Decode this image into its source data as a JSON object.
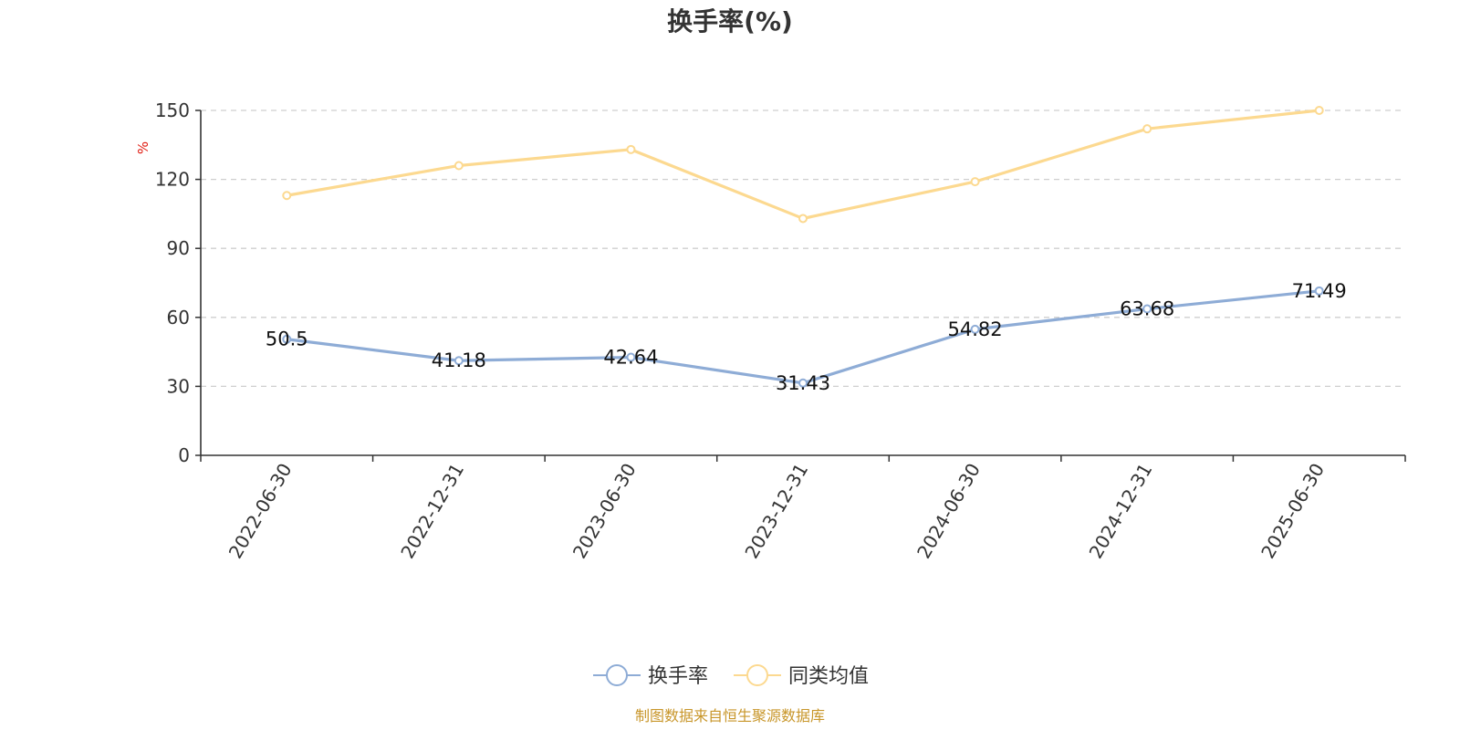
{
  "chart_data": {
    "type": "line",
    "title": "换手率(%)",
    "ylabel": "%",
    "xlabel": "",
    "categories": [
      "2022-06-30",
      "2022-12-31",
      "2023-06-30",
      "2023-12-31",
      "2024-06-30",
      "2024-12-31",
      "2025-06-30"
    ],
    "ylim": [
      0,
      150
    ],
    "yticks": [
      0,
      30,
      60,
      90,
      120,
      150
    ],
    "grid": true,
    "legend_position": "bottom",
    "series": [
      {
        "name": "换手率",
        "values": [
          50.5,
          41.18,
          42.64,
          31.43,
          54.82,
          63.68,
          71.49
        ],
        "data_labels": [
          "50.5",
          "41.18",
          "42.64",
          "31.43",
          "54.82",
          "63.68",
          "71.49"
        ],
        "color": "#8eacd6"
      },
      {
        "name": "同类均值",
        "values": [
          113,
          126,
          133,
          103,
          119,
          142,
          150
        ],
        "color": "#fcd990"
      }
    ],
    "source_note": "制图数据来自恒生聚源数据库"
  }
}
